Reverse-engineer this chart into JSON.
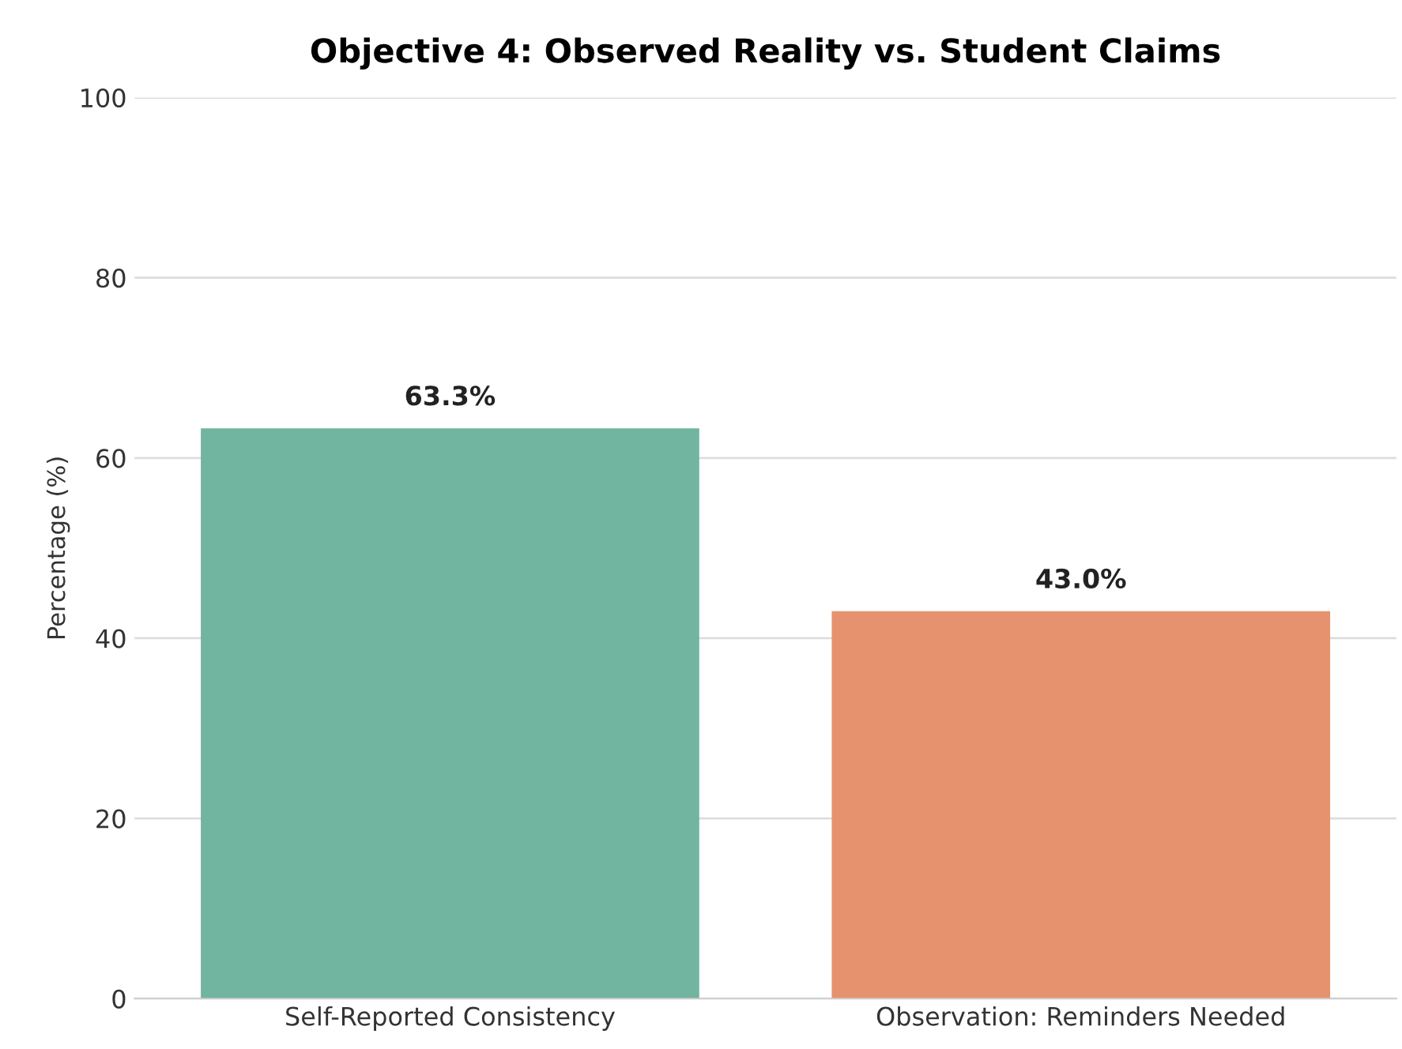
{
  "chart_data": {
    "type": "bar",
    "title": "Objective 4: Observed Reality vs. Student Claims",
    "ylabel": "Percentage (%)",
    "categories": [
      "Self-Reported Consistency",
      "Observation: Reminders Needed"
    ],
    "values": [
      63.3,
      43.0
    ],
    "colors": [
      "#71b4a0",
      "#e6926e"
    ],
    "value_labels": [
      "63.3%",
      "43.0%"
    ],
    "ylim": [
      0,
      100
    ],
    "yticks": [
      0,
      20,
      40,
      60,
      80,
      100
    ],
    "grid": "y",
    "legend": false
  }
}
